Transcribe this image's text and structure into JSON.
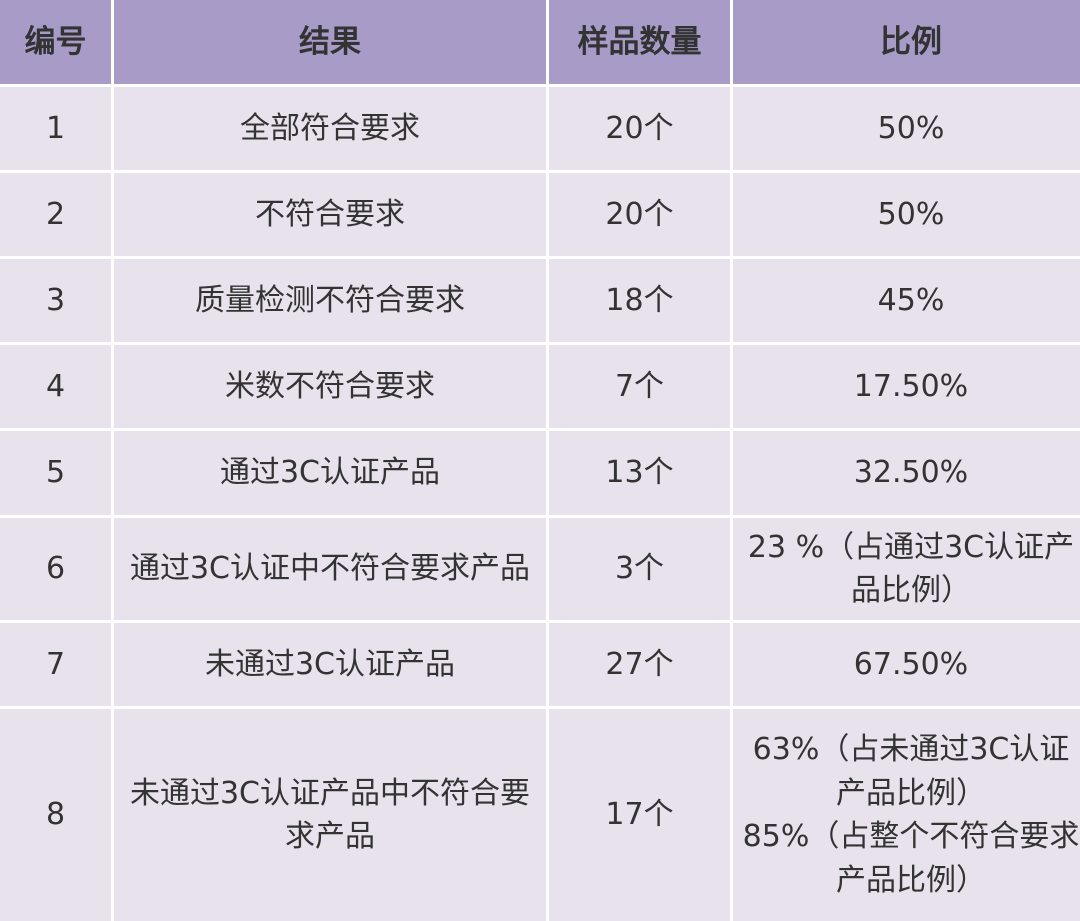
{
  "headers": [
    "编号",
    "结果",
    "样品数量",
    "比例"
  ],
  "rows": [
    {
      "no": "1",
      "result": "全部符合要求",
      "count": "20个",
      "ratio": [
        "50%"
      ]
    },
    {
      "no": "2",
      "result": "不符合要求",
      "count": "20个",
      "ratio": [
        "50%"
      ]
    },
    {
      "no": "3",
      "result": "质量检测不符合要求",
      "count": "18个",
      "ratio": [
        "45%"
      ]
    },
    {
      "no": "4",
      "result": "米数不符合要求",
      "count": "7个",
      "ratio": [
        "17.50%"
      ]
    },
    {
      "no": "5",
      "result": "通过3C认证产品",
      "count": "13个",
      "ratio": [
        "32.50%"
      ]
    },
    {
      "no": "6",
      "result": "通过3C认证中不符合要求产品",
      "count": "3个",
      "ratio": [
        "23 %（占通过3C认证产",
        "品比例）"
      ]
    },
    {
      "no": "7",
      "result": "未通过3C认证产品",
      "count": "27个",
      "ratio": [
        "67.50%"
      ]
    },
    {
      "no": "8",
      "result": [
        "未通过3C认证产品中不符合要",
        "求产品"
      ],
      "count": "17个",
      "ratio": [
        "63%（占未通过3C认证",
        "产品比例）",
        "85%（占整个不符合要求",
        "产品比例）"
      ]
    }
  ]
}
